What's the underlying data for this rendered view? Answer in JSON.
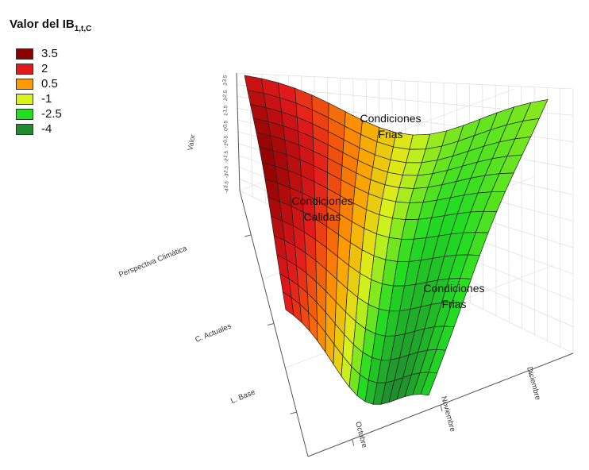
{
  "chart_data": {
    "type": "surface3d",
    "title": "Valor del IB",
    "title_subscript": "1,t,C",
    "legend": {
      "placement": "top-left",
      "entries": [
        {
          "label": "3.5",
          "color": "#8b0000"
        },
        {
          "label": "2",
          "color": "#e31a1c"
        },
        {
          "label": "0.5",
          "color": "#ff9900"
        },
        {
          "label": "-1",
          "color": "#d9f21c"
        },
        {
          "label": "-2.5",
          "color": "#22dd22"
        },
        {
          "label": "-4",
          "color": "#1f8c2f"
        }
      ]
    },
    "y_axis": {
      "categories": [
        "L. Base",
        "C. Actuales",
        "Perspectiva Climática"
      ]
    },
    "x_axis": {
      "categories": [
        "Octubre",
        "Noviembre",
        "Diciembre"
      ]
    },
    "z_axis": {
      "label": "Valor",
      "tick_labels": [
        "3.5",
        "3",
        "2.5",
        "2",
        "1.5",
        "1",
        "0.5",
        "0",
        "-0.5",
        "-1",
        "-1.5",
        "-2",
        "-2.5",
        "-3",
        "-3.5",
        "-4"
      ]
    },
    "annotations": [
      {
        "text": [
          "Condiciones",
          "Frias"
        ],
        "region": "back-right"
      },
      {
        "text": [
          "Condiciones",
          "Calidas"
        ],
        "region": "center-left"
      },
      {
        "text": [
          "Condiciones",
          "Frias"
        ],
        "region": "front-right"
      }
    ]
  }
}
